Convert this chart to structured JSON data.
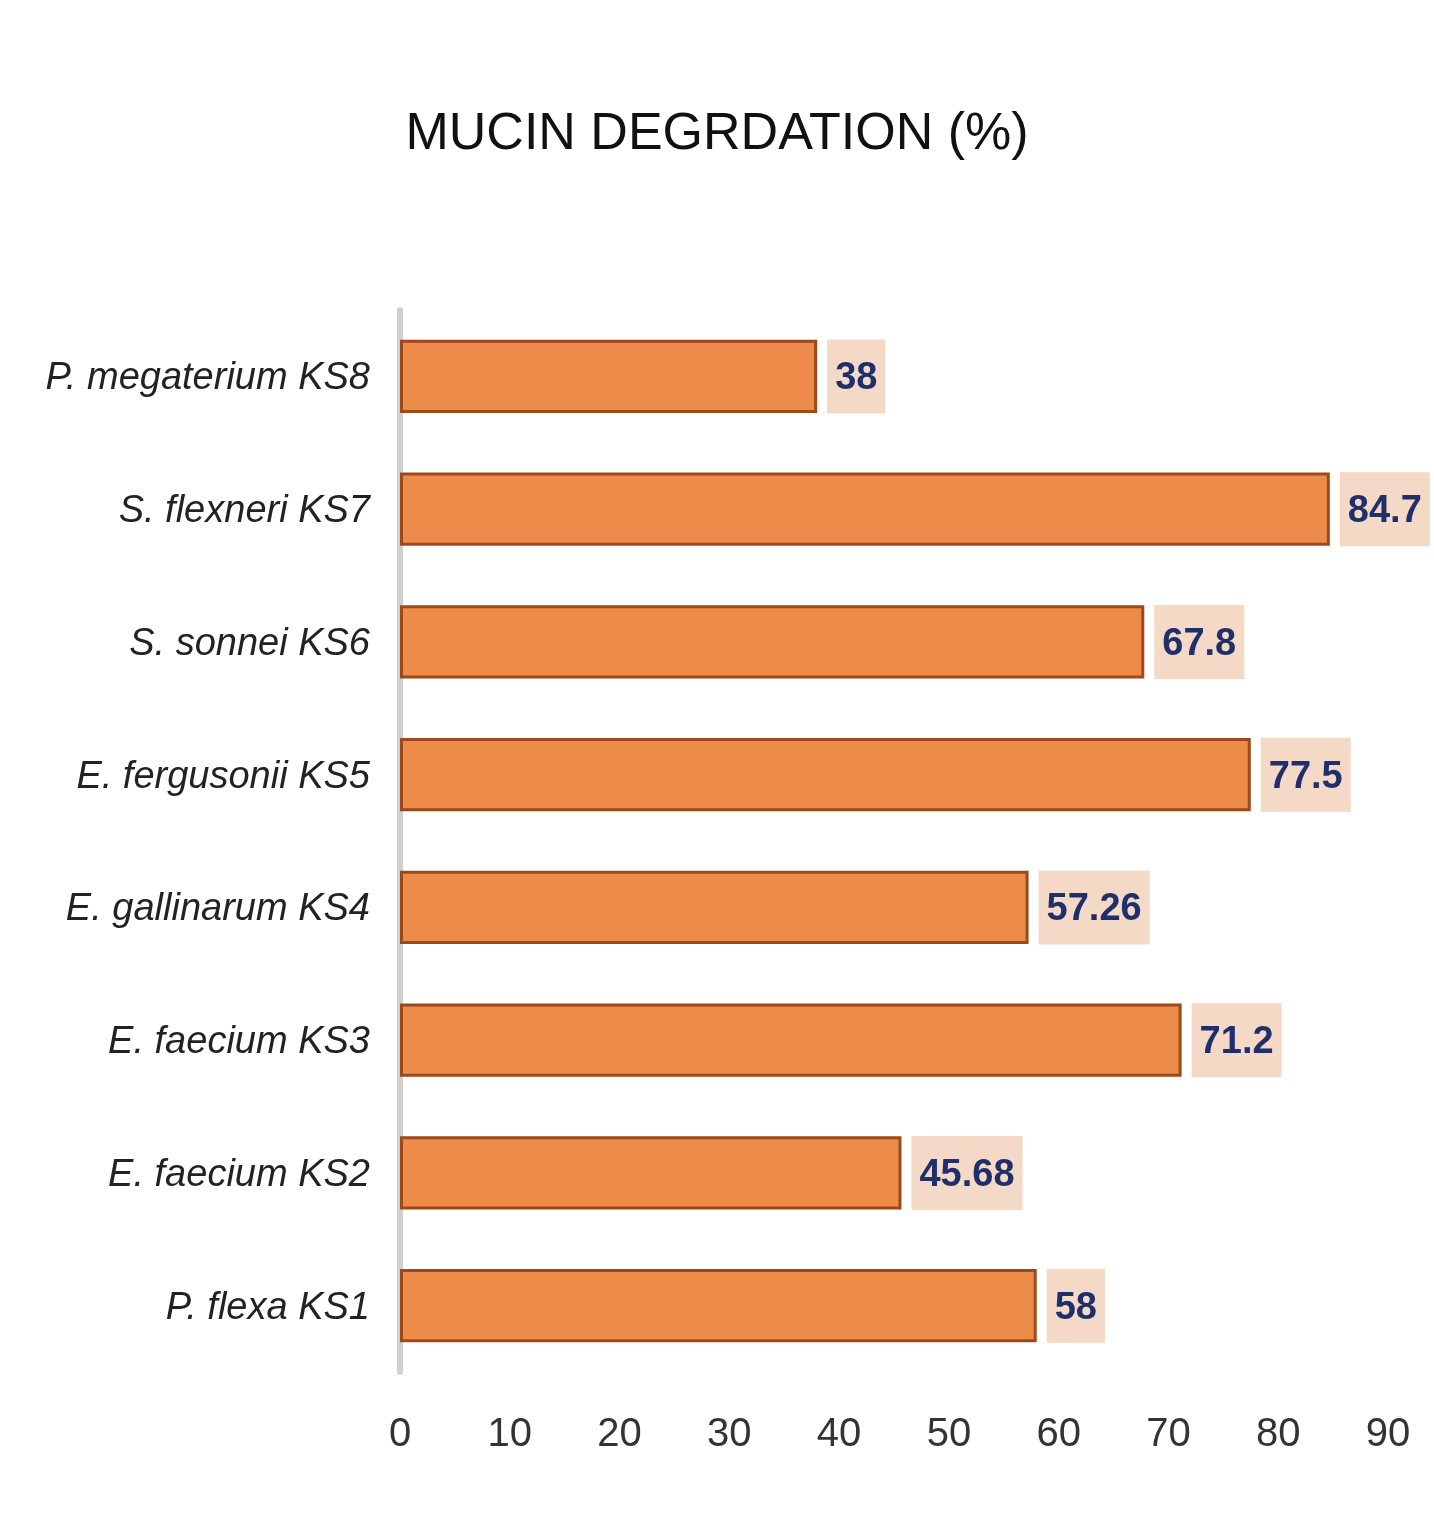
{
  "chart_data": {
    "type": "bar",
    "orientation": "horizontal",
    "title": "MUCIN DEGRDATION (%)",
    "categories": [
      "P. megaterium KS8",
      "S. flexneri KS7",
      "S. sonnei KS6",
      "E. fergusonii KS5",
      "E. gallinarum KS4",
      "E. faecium KS3",
      "E. faecium KS2",
      "P. flexa KS1"
    ],
    "values": [
      38,
      84.7,
      67.8,
      77.5,
      57.26,
      71.2,
      45.68,
      58
    ],
    "color": "#ed8b4a",
    "xlim": [
      0,
      90
    ],
    "xticks": [
      0,
      10,
      20,
      30,
      40,
      50,
      60,
      70,
      80,
      90
    ],
    "grid": false,
    "data_labels": true
  }
}
